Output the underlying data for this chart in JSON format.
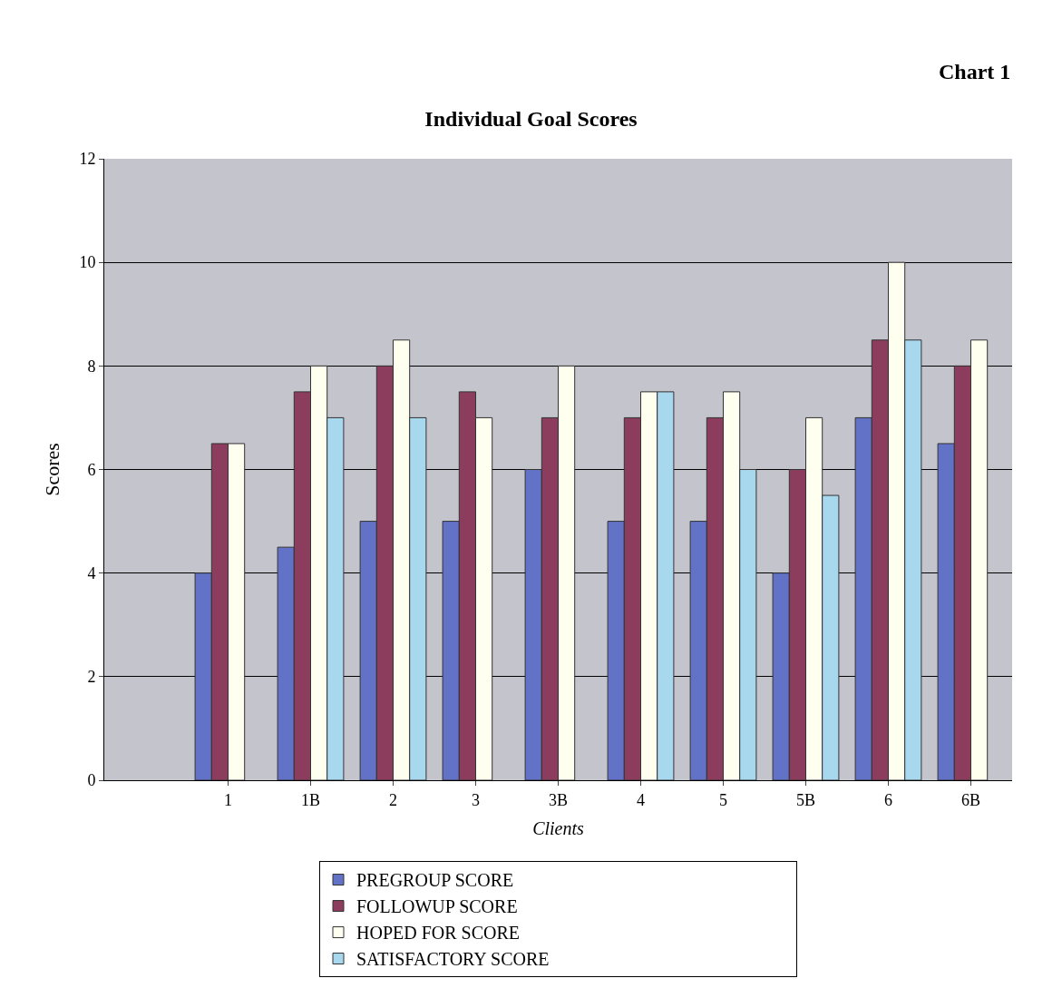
{
  "chart_data": {
    "type": "bar",
    "title": "Individual Goal Scores",
    "xlabel": "Clients",
    "ylabel": "Scores",
    "annotations": [
      "Chart 1"
    ],
    "categories": [
      null,
      "1",
      "1B",
      "2",
      "3",
      "3B",
      "4",
      "5",
      "5B",
      "6",
      "6B"
    ],
    "series": [
      {
        "name": "PREGROUP SCORE",
        "color": "#6272c6",
        "values": [
          null,
          4,
          4.5,
          5,
          5,
          6,
          5,
          5,
          4,
          7,
          6.5
        ]
      },
      {
        "name": "FOLLOWUP SCORE",
        "color": "#8c3c5c",
        "values": [
          null,
          6.5,
          7.5,
          8,
          7.5,
          7,
          7,
          7,
          6,
          8.5,
          8
        ]
      },
      {
        "name": "HOPED FOR SCORE",
        "color": "#fffff0",
        "values": [
          null,
          6.5,
          8,
          8.5,
          7,
          8,
          7.5,
          7.5,
          7,
          10,
          8.5
        ]
      },
      {
        "name": "SATISFACTORY SCORE",
        "color": "#a8d8ee",
        "values": [
          null,
          null,
          7,
          7,
          null,
          null,
          7.5,
          6,
          5.5,
          8.5,
          null
        ]
      }
    ],
    "ylim": [
      0,
      12
    ],
    "yticks": [
      0,
      2,
      4,
      6,
      8,
      10,
      12
    ],
    "grid": "y",
    "legend": "bottom"
  }
}
